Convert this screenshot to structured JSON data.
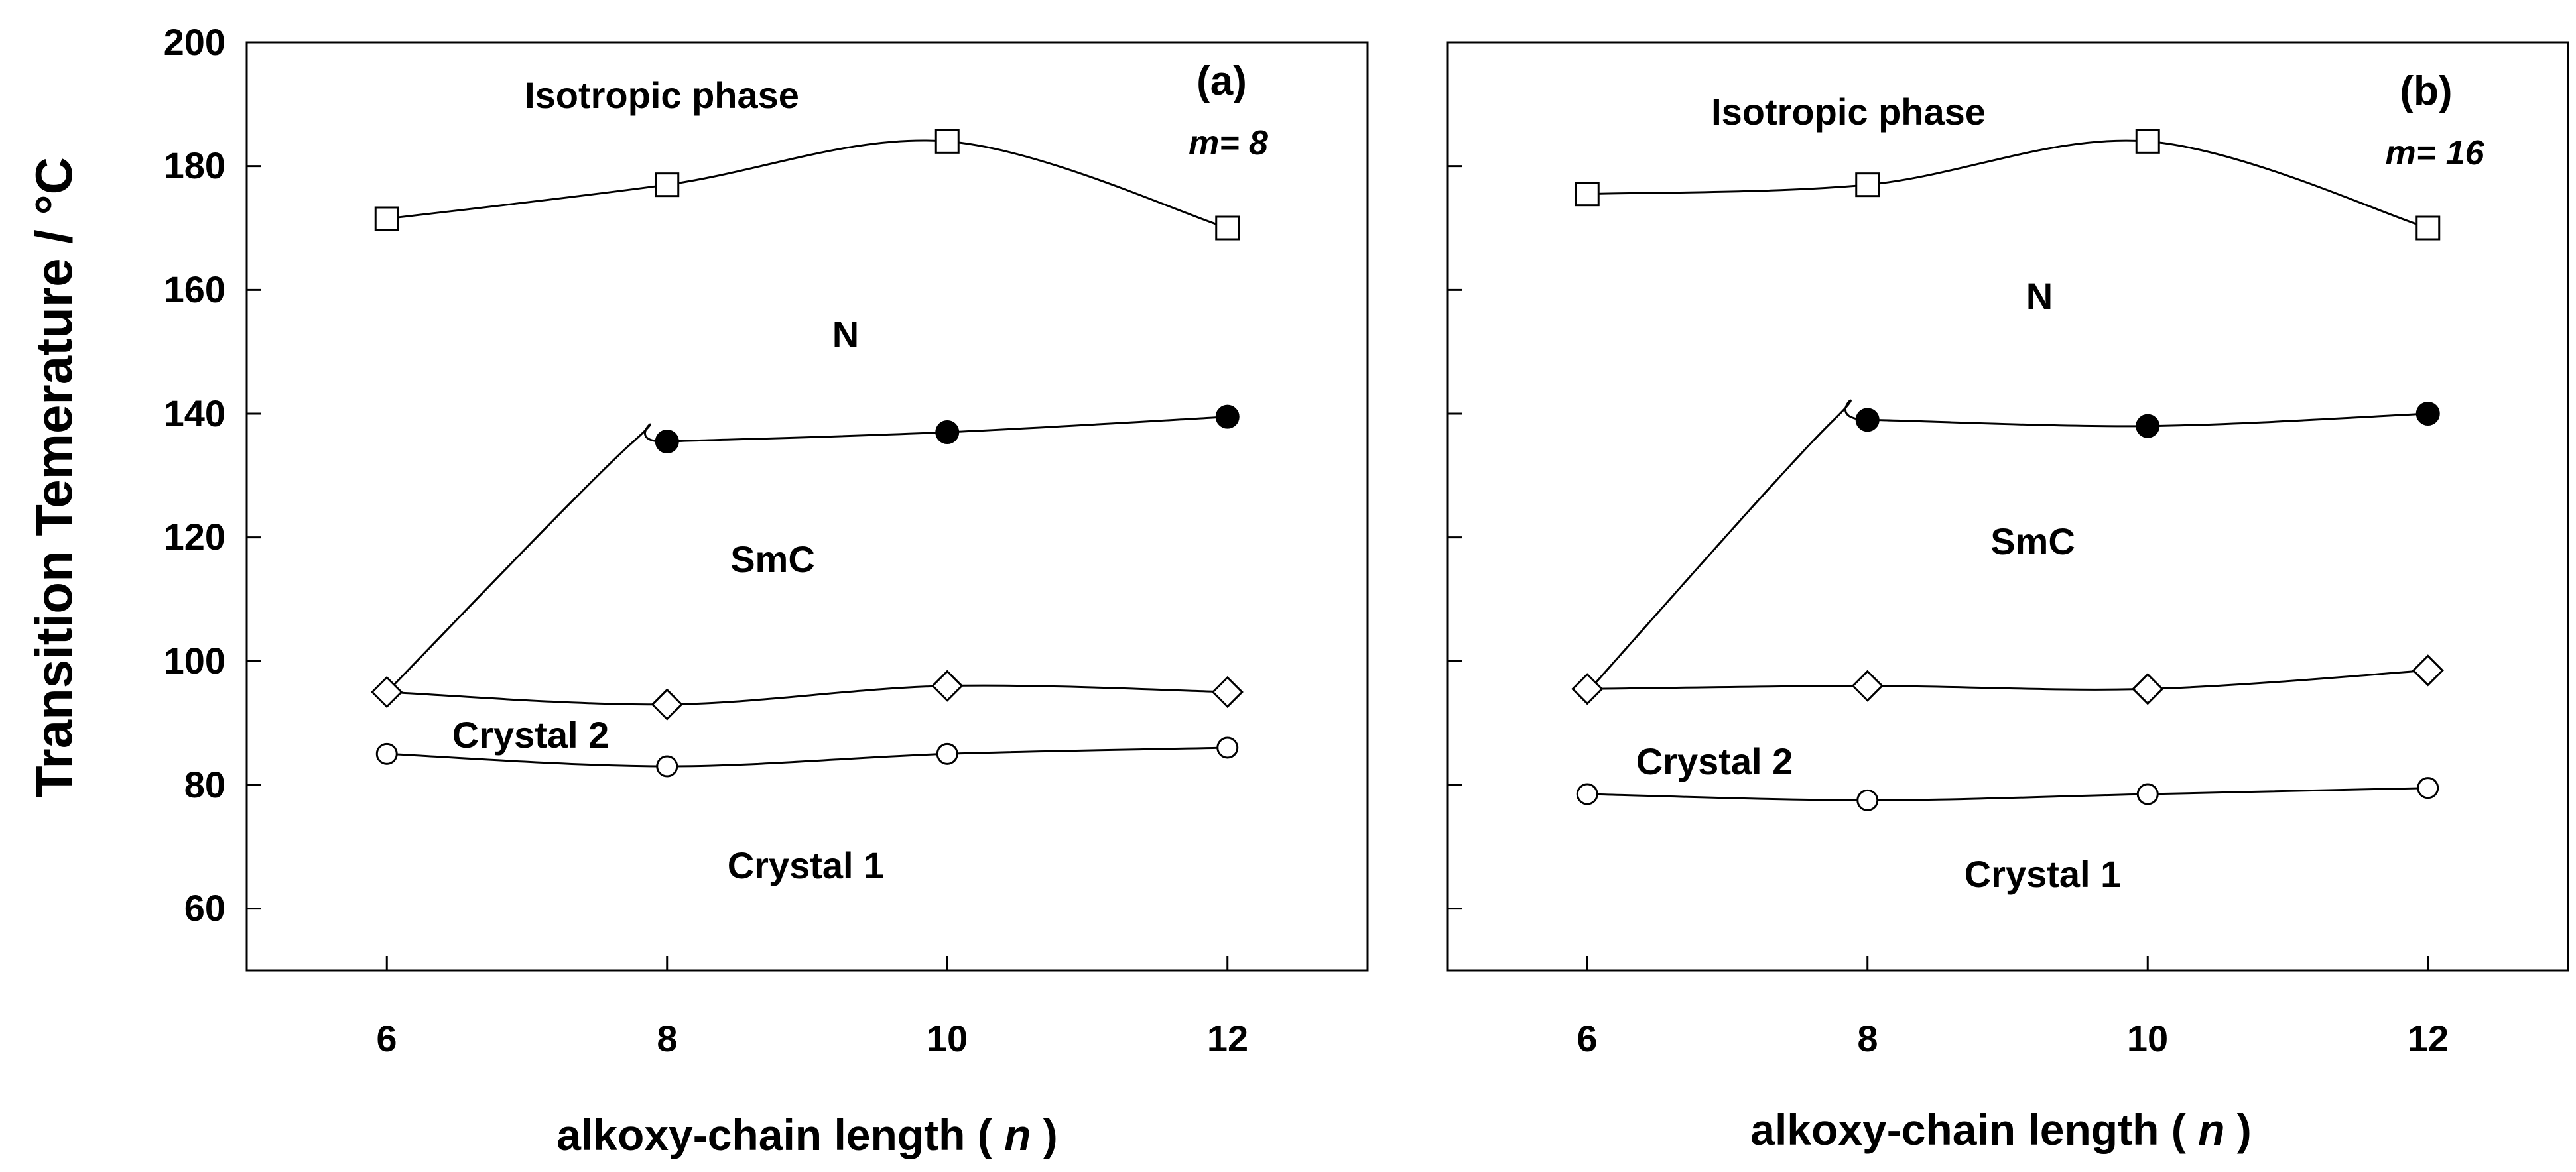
{
  "chart_data": [
    {
      "type": "line",
      "panel": "(a)",
      "parameter": "m= 8",
      "ylabel": "Transition Temerature / °C",
      "xlabel_prefix": "alkoxy-chain length (",
      "xlabel_var": "n",
      "xlabel_suffix": ")",
      "xlim": [
        5,
        13
      ],
      "ylim": [
        50,
        200
      ],
      "xticks": [
        6,
        8,
        10,
        12
      ],
      "yticks": [
        60,
        80,
        100,
        120,
        140,
        160,
        180,
        200
      ],
      "regions": [
        "Isotropic phase",
        "N",
        "SmC",
        "Crystal 2",
        "Crystal 1"
      ],
      "series": [
        {
          "name": "Isotropic-N",
          "marker": "square",
          "x": [
            6,
            8,
            10,
            12
          ],
          "y": [
            171.5,
            177,
            184,
            170
          ]
        },
        {
          "name": "N-SmC",
          "marker": "filled-circle",
          "x": [
            8,
            10,
            12
          ],
          "y": [
            135.5,
            137,
            139.5
          ],
          "curve_start": [
            6,
            95
          ]
        },
        {
          "name": "SmC-Crystal 2",
          "marker": "diamond",
          "x": [
            6,
            8,
            10,
            12
          ],
          "y": [
            95,
            93,
            96,
            95
          ]
        },
        {
          "name": "Crystal 2-Crystal 1",
          "marker": "open-circle",
          "x": [
            6,
            8,
            10,
            12
          ],
          "y": [
            85,
            83,
            85,
            86
          ]
        }
      ]
    },
    {
      "type": "line",
      "panel": "(b)",
      "parameter": "m= 16",
      "ylabel": "",
      "xlabel_prefix": "alkoxy-chain length (",
      "xlabel_var": "n",
      "xlabel_suffix": ")",
      "xlim": [
        5,
        13
      ],
      "ylim": [
        50,
        200
      ],
      "xticks": [
        6,
        8,
        10,
        12
      ],
      "yticks": [
        60,
        80,
        100,
        120,
        140,
        160,
        180,
        200
      ],
      "regions": [
        "Isotropic phase",
        "N",
        "SmC",
        "Crystal 2",
        "Crystal 1"
      ],
      "series": [
        {
          "name": "Isotropic-N",
          "marker": "square",
          "x": [
            6,
            8,
            10,
            12
          ],
          "y": [
            175.5,
            177,
            184,
            170
          ]
        },
        {
          "name": "N-SmC",
          "marker": "filled-circle",
          "x": [
            8,
            10,
            12
          ],
          "y": [
            139,
            138,
            140
          ],
          "curve_start": [
            6,
            95
          ]
        },
        {
          "name": "SmC-Crystal 2",
          "marker": "diamond",
          "x": [
            6,
            8,
            10,
            12
          ],
          "y": [
            95.5,
            96,
            95.5,
            98.5
          ]
        },
        {
          "name": "Crystal 2-Crystal 1",
          "marker": "open-circle",
          "x": [
            6,
            8,
            10,
            12
          ],
          "y": [
            78.5,
            77.5,
            78.5,
            79.5
          ]
        }
      ]
    }
  ]
}
